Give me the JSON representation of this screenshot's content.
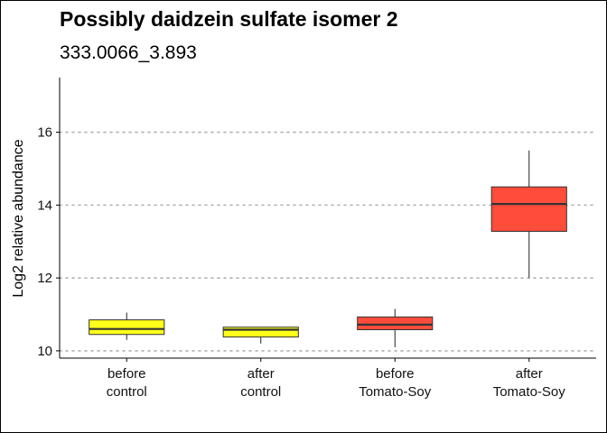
{
  "chart_data": {
    "type": "boxplot",
    "title": "Possibly daidzein sulfate isomer 2",
    "subtitle": "333.0066_3.893",
    "xlabel": "",
    "ylabel": "Log2 relative abundance",
    "ylim": [
      9.8,
      17.5
    ],
    "yticks": [
      "10",
      "12",
      "14",
      "16"
    ],
    "grid": "horizontal dotted",
    "categories": [
      {
        "label_line1": "before",
        "label_line2": "control",
        "color": "#FFFF19",
        "whisker_low": 10.3,
        "q1": 10.45,
        "median": 10.6,
        "q3": 10.85,
        "whisker_high": 11.05
      },
      {
        "label_line1": "after",
        "label_line2": "control",
        "color": "#FFFF19",
        "whisker_low": 10.2,
        "q1": 10.38,
        "median": 10.58,
        "q3": 10.65,
        "whisker_high": 10.65
      },
      {
        "label_line1": "before",
        "label_line2": "Tomato-Soy",
        "color": "#FF4C3B",
        "whisker_low": 10.1,
        "q1": 10.58,
        "median": 10.72,
        "q3": 10.93,
        "whisker_high": 11.15
      },
      {
        "label_line1": "after",
        "label_line2": "Tomato-Soy",
        "color": "#FF4C3B",
        "whisker_low": 12.0,
        "q1": 13.28,
        "median": 14.03,
        "q3": 14.5,
        "whisker_high": 15.5
      }
    ]
  }
}
